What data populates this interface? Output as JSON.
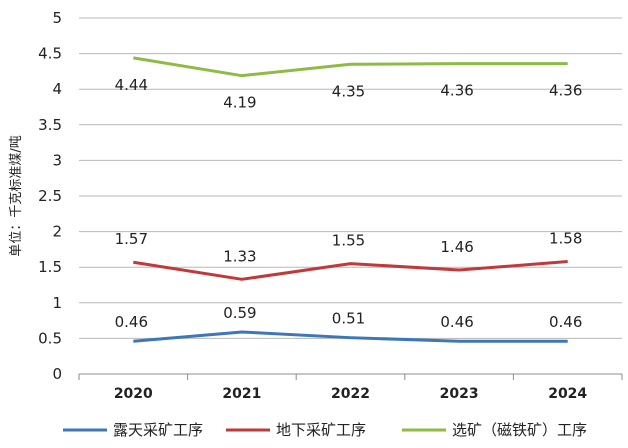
{
  "chart_data": {
    "type": "line",
    "title": "",
    "xlabel": "",
    "ylabel": "单位：千克标准煤/吨",
    "categories": [
      "2020",
      "2021",
      "2022",
      "2023",
      "2024"
    ],
    "ylim": [
      0,
      5
    ],
    "yticks": [
      "0",
      "0.5",
      "1",
      "1.5",
      "2",
      "2.5",
      "3",
      "3.5",
      "4",
      "4.5",
      "5"
    ],
    "ytick_values": [
      0,
      0.5,
      1,
      1.5,
      2,
      2.5,
      3,
      3.5,
      4,
      4.5,
      5
    ],
    "grid": true,
    "legend_position": "bottom",
    "series": [
      {
        "name": "露天采矿工序",
        "color": "#3c78b8",
        "values": [
          0.46,
          0.59,
          0.51,
          0.46,
          0.46
        ],
        "labels": [
          "0.46",
          "0.59",
          "0.51",
          "0.46",
          "0.46"
        ]
      },
      {
        "name": "地下采矿工序",
        "color": "#c0393b",
        "values": [
          1.57,
          1.33,
          1.55,
          1.46,
          1.58
        ],
        "labels": [
          "1.57",
          "1.33",
          "1.55",
          "1.46",
          "1.58"
        ]
      },
      {
        "name": "选矿（磁铁矿）工序",
        "color": "#8dbb45",
        "values": [
          4.44,
          4.19,
          4.35,
          4.36,
          4.36
        ],
        "labels": [
          "4.44",
          "4.19",
          "4.35",
          "4.36",
          "4.36"
        ]
      }
    ]
  }
}
